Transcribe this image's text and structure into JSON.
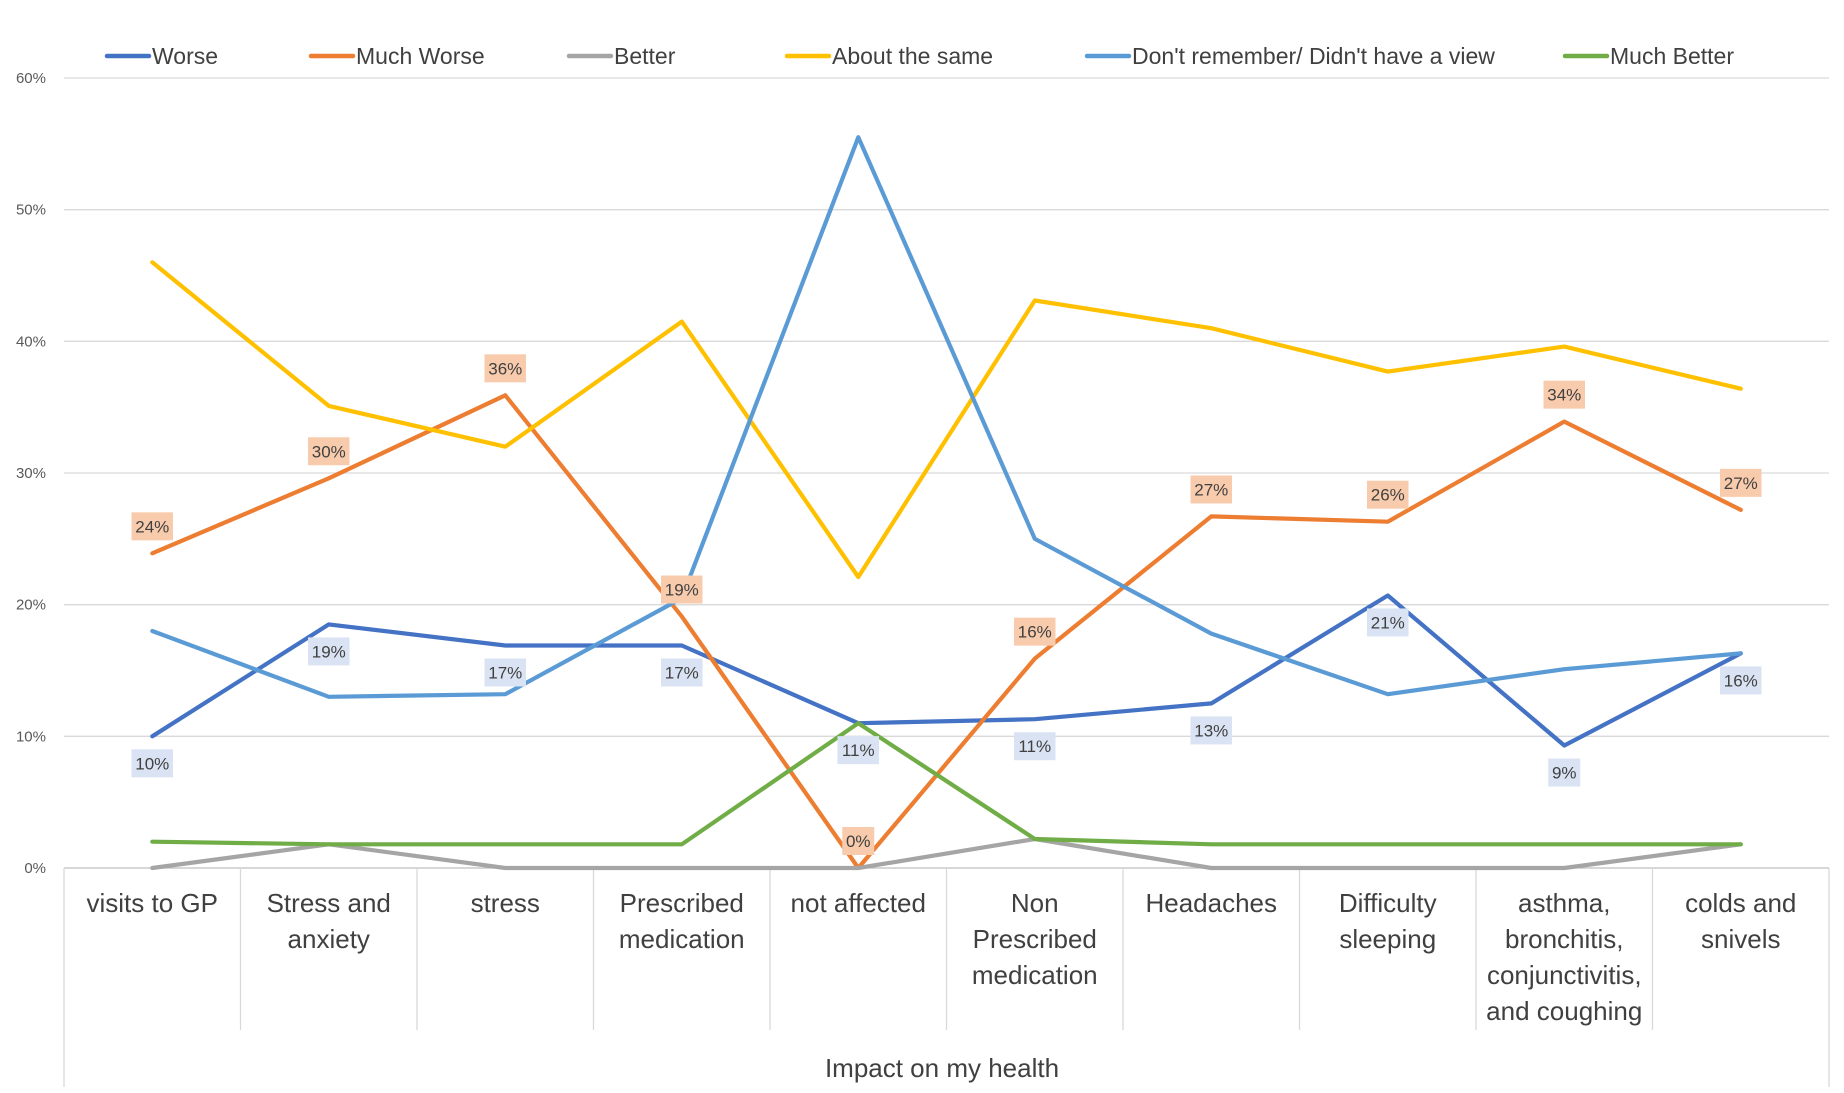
{
  "chart_data": {
    "type": "line",
    "xlabel": "Impact on my health",
    "ylabel": "",
    "ylim": [
      0,
      0.6
    ],
    "yticks": [
      "0%",
      "10%",
      "20%",
      "30%",
      "40%",
      "50%",
      "60%"
    ],
    "grid": true,
    "legend_position": "top",
    "categories": [
      [
        "visits  to GP"
      ],
      [
        "Stress and",
        "anxiety"
      ],
      [
        "stress"
      ],
      [
        "Prescribed",
        "medication"
      ],
      [
        "not affected"
      ],
      [
        "Non",
        "Prescribed",
        "medication"
      ],
      [
        "Headaches"
      ],
      [
        "Difficulty",
        "sleeping"
      ],
      [
        "asthma,",
        "bronchitis,",
        "conjunctivitis,",
        "and coughing"
      ],
      [
        "colds  and",
        "snivels"
      ]
    ],
    "series": [
      {
        "name": "Worse",
        "color": "#4472C4",
        "values": [
          0.1,
          0.185,
          0.169,
          0.169,
          0.11,
          0.113,
          0.125,
          0.207,
          0.093,
          0.163
        ],
        "labels": [
          "10%",
          "19%",
          "17%",
          "17%",
          "11%",
          "11%",
          "13%",
          "21%",
          "9%",
          "16%"
        ],
        "label_style": "blue"
      },
      {
        "name": "Much Worse",
        "color": "#ED7D31",
        "values": [
          0.239,
          0.296,
          0.359,
          0.191,
          0.0,
          0.159,
          0.267,
          0.263,
          0.339,
          0.272
        ],
        "labels": [
          "24%",
          "30%",
          "36%",
          "19%",
          "0%",
          "16%",
          "27%",
          "26%",
          "34%",
          "27%"
        ],
        "label_style": "orange"
      },
      {
        "name": "Better",
        "color": "#A5A5A5",
        "values": [
          0.0,
          0.018,
          0.0,
          0.0,
          0.0,
          0.022,
          0.0,
          0.0,
          0.0,
          0.018
        ]
      },
      {
        "name": "About the same",
        "color": "#FFC000",
        "values": [
          0.46,
          0.351,
          0.32,
          0.415,
          0.221,
          0.431,
          0.41,
          0.377,
          0.396,
          0.364
        ]
      },
      {
        "name": "Don't remember/ Didn't have a view",
        "color": "#5B9BD5",
        "values": [
          0.18,
          0.13,
          0.132,
          0.205,
          0.555,
          0.25,
          0.178,
          0.132,
          0.151,
          0.163
        ]
      },
      {
        "name": "Much Better",
        "color": "#70AD47",
        "values": [
          0.02,
          0.018,
          0.018,
          0.018,
          0.11,
          0.022,
          0.018,
          0.018,
          0.018,
          0.018
        ]
      }
    ]
  }
}
